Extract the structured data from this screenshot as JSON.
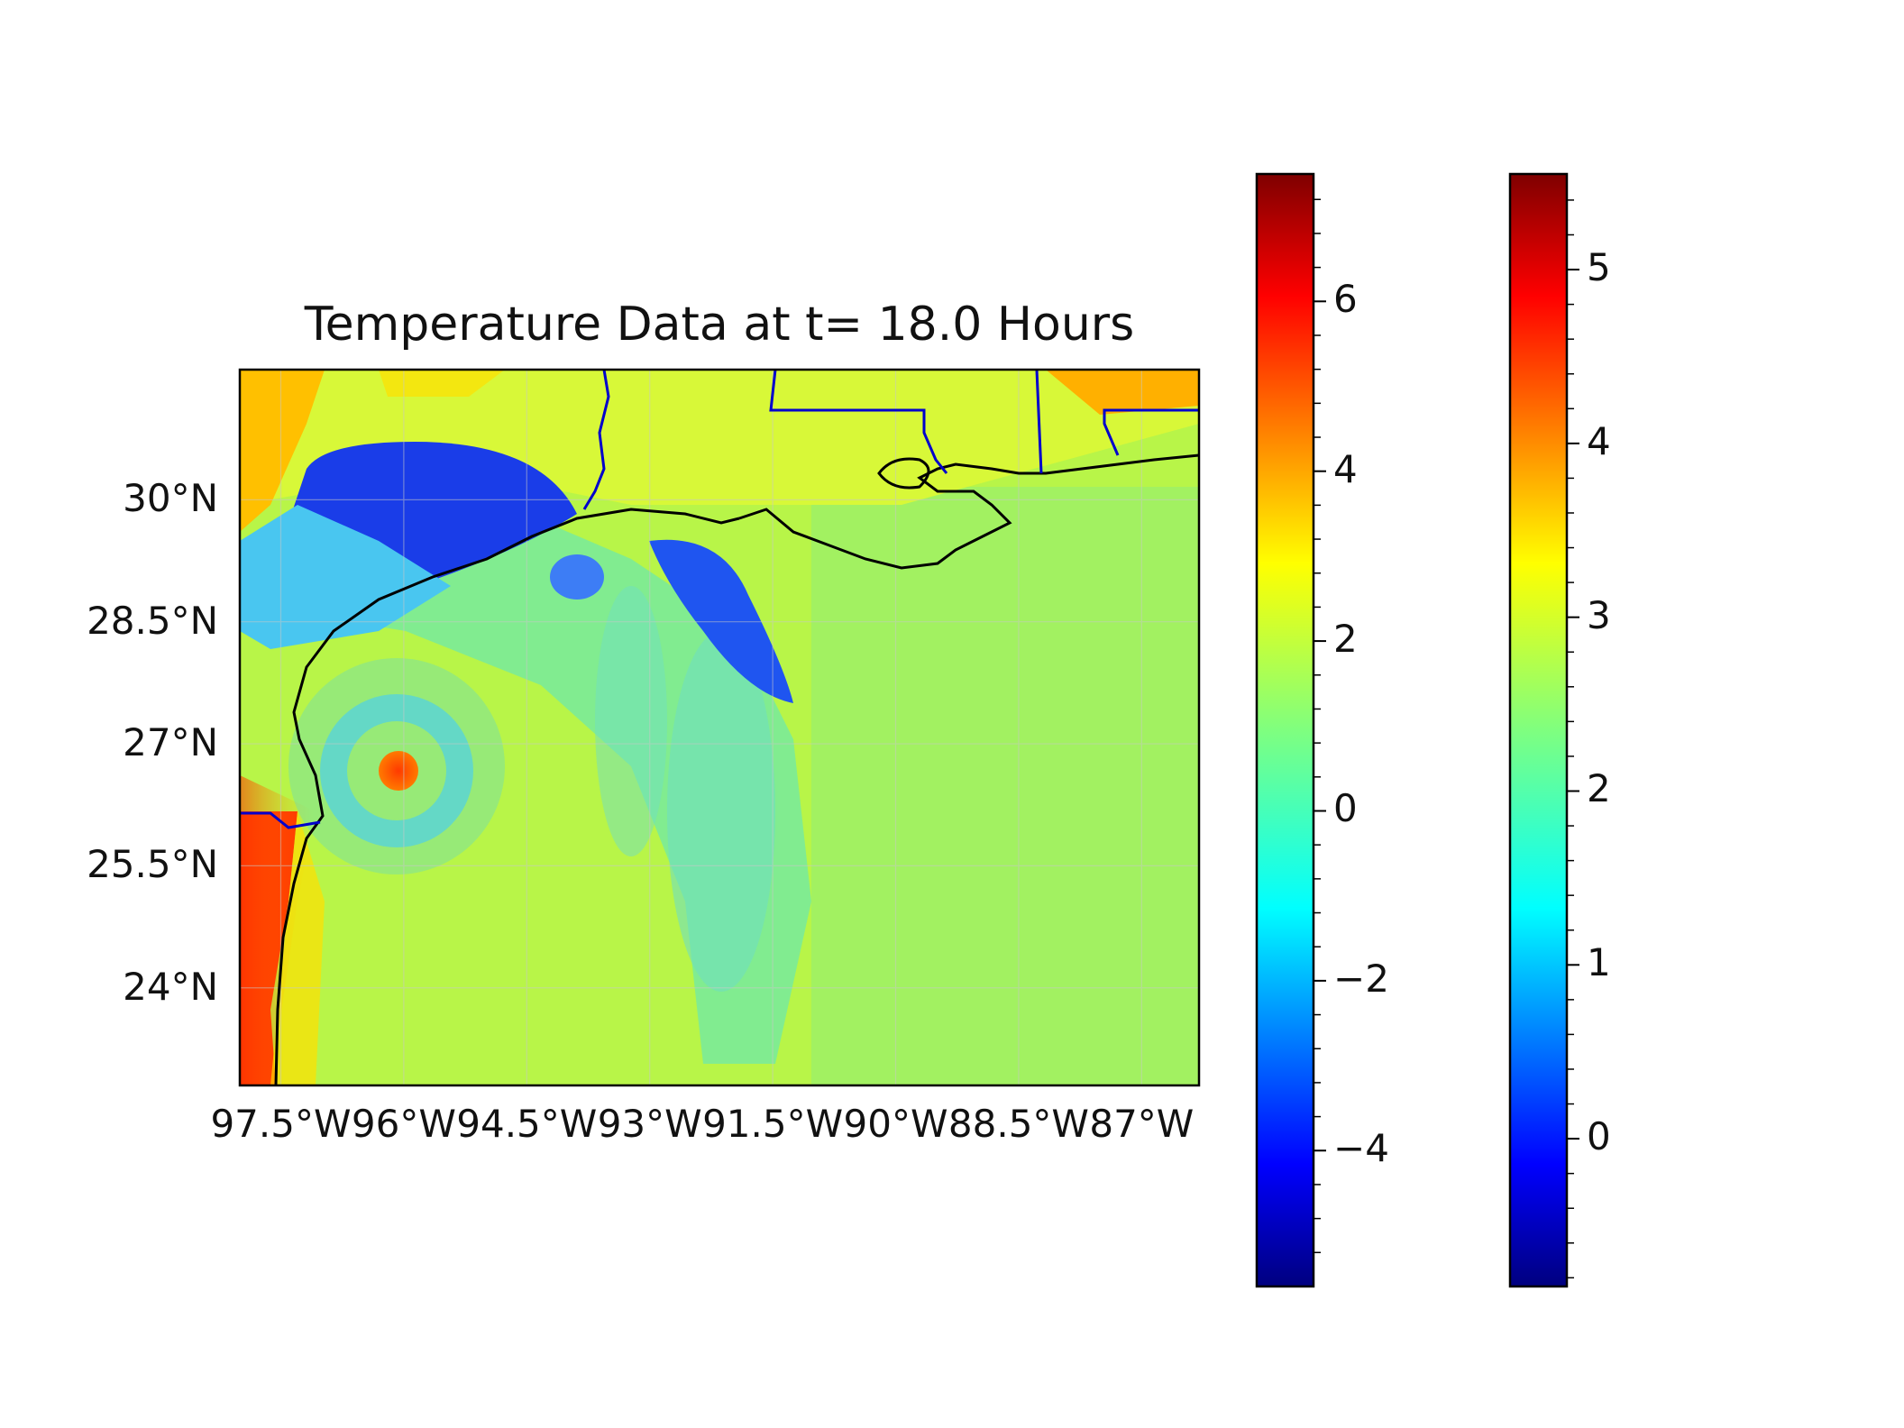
{
  "title": "Temperature Data at t= 18.0 Hours",
  "map": {
    "lat_ticks": [
      {
        "value": 30,
        "label": "30°N"
      },
      {
        "value": 28.5,
        "label": "28.5°N"
      },
      {
        "value": 27,
        "label": "27°N"
      },
      {
        "value": 25.5,
        "label": "25.5°N"
      },
      {
        "value": 24,
        "label": "24°N"
      }
    ],
    "lon_ticks": [
      {
        "value": -97.5,
        "label": "97.5°W"
      },
      {
        "value": -96,
        "label": "96°W"
      },
      {
        "value": -94.5,
        "label": "94.5°W"
      },
      {
        "value": -93,
        "label": "93°W"
      },
      {
        "value": -91.5,
        "label": "91.5°W"
      },
      {
        "value": -90,
        "label": "90°W"
      },
      {
        "value": -88.5,
        "label": "88.5°W"
      },
      {
        "value": -87,
        "label": "87°W"
      }
    ],
    "colormap": "jet",
    "coastline_color": "#000000",
    "border_color": "#0000cc"
  },
  "colorbars": [
    {
      "name": "colorbar-left",
      "range": [
        -5.6,
        7.5
      ],
      "ticks": [
        {
          "value": 6,
          "label": "6"
        },
        {
          "value": 4,
          "label": "4"
        },
        {
          "value": 2,
          "label": "2"
        },
        {
          "value": 0,
          "label": "0"
        },
        {
          "value": -2,
          "label": "−2"
        },
        {
          "value": -4,
          "label": "−4"
        }
      ]
    },
    {
      "name": "colorbar-right",
      "range": [
        -0.85,
        5.55
      ],
      "ticks": [
        {
          "value": 5,
          "label": "5"
        },
        {
          "value": 4,
          "label": "4"
        },
        {
          "value": 3,
          "label": "3"
        },
        {
          "value": 2,
          "label": "2"
        },
        {
          "value": 1,
          "label": "1"
        },
        {
          "value": 0,
          "label": "0"
        }
      ]
    }
  ],
  "colors": {
    "jet": [
      "#00007f",
      "#0000ff",
      "#007fff",
      "#00ffff",
      "#7fff7f",
      "#ffff00",
      "#ff7f00",
      "#ff0000",
      "#7f0000"
    ]
  }
}
